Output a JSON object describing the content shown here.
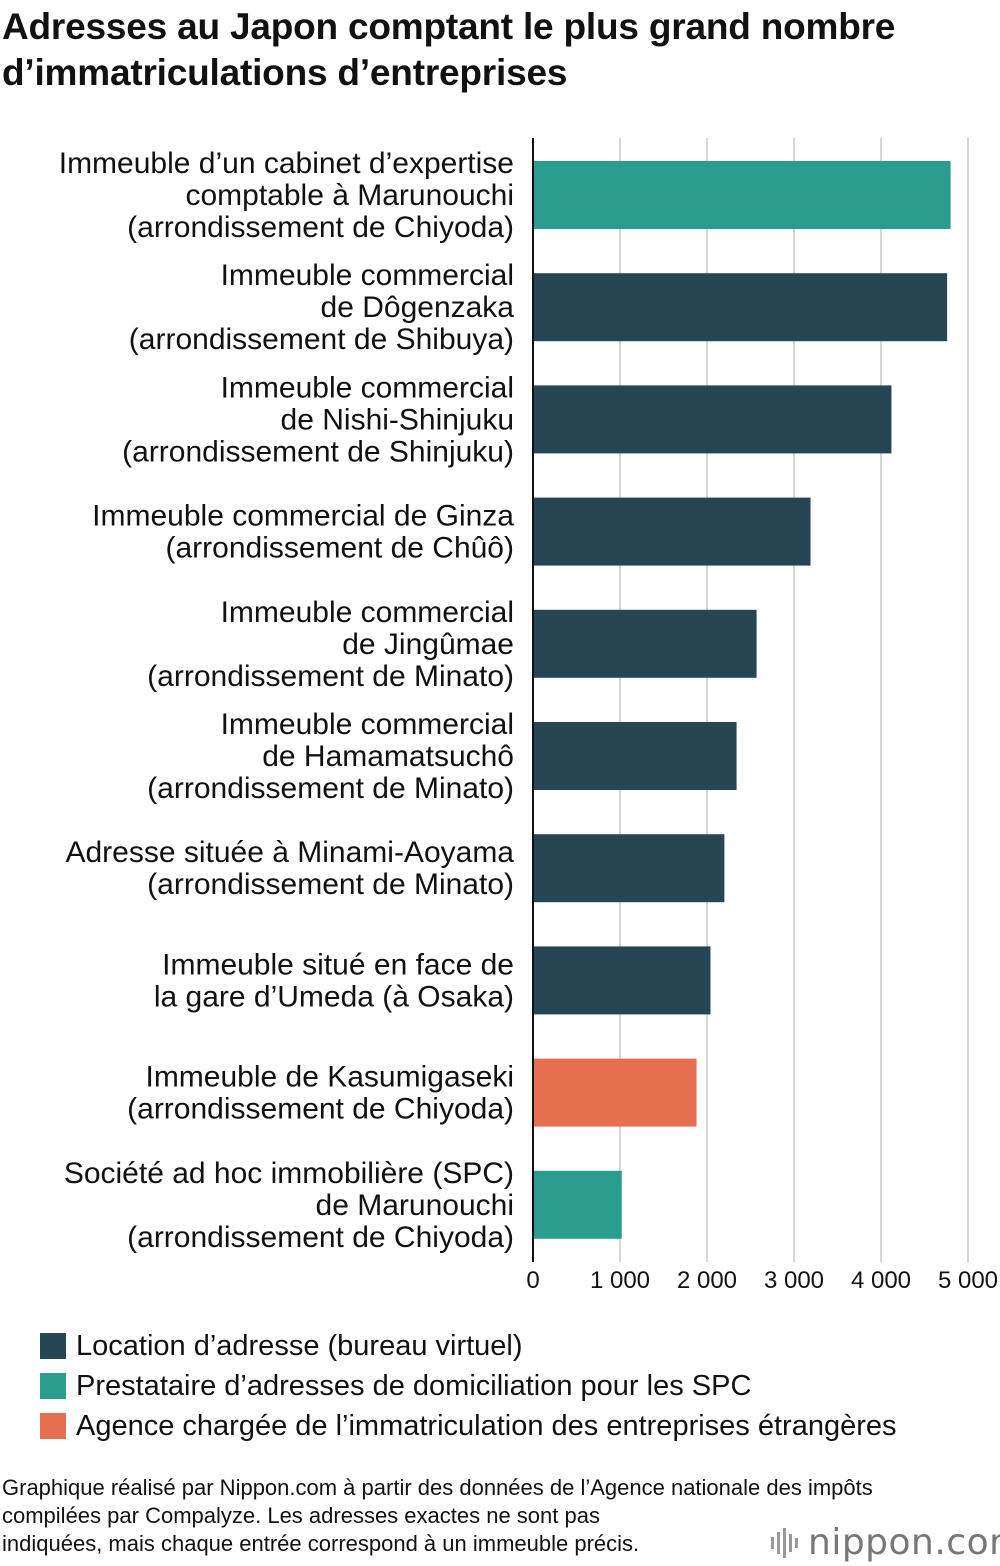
{
  "chart_data": {
    "type": "bar",
    "orientation": "horizontal",
    "title": "Adresses au Japon comptant le plus grand nombre d’immatriculations d’entreprises",
    "categories": [
      [
        "Immeuble d’un cabinet d’expertise",
        "comptable à Marunouchi",
        "(arrondissement de Chiyoda)"
      ],
      [
        "Immeuble commercial",
        "de Dôgenzaka",
        "(arrondissement de Shibuya)"
      ],
      [
        "Immeuble commercial",
        "de Nishi-Shinjuku",
        "(arrondissement de Shinjuku)"
      ],
      [
        "Immeuble commercial de Ginza",
        "(arrondissement de Chûô)"
      ],
      [
        "Immeuble commercial",
        "de Jingûmae",
        "(arrondissement de Minato)"
      ],
      [
        "Immeuble commercial",
        "de Hamamatsuchô",
        "(arrondissement de Minato)"
      ],
      [
        "Adresse située à Minami-Aoyama",
        "(arrondissement de Minato)"
      ],
      [
        "Immeuble situé en face de",
        "la gare d’Umeda (à Osaka)"
      ],
      [
        "Immeuble de Kasumigaseki",
        "(arrondissement de Chiyoda)"
      ],
      [
        "Société ad hoc immobilière (SPC)",
        "de Marunouchi",
        "(arrondissement de Chiyoda)"
      ]
    ],
    "values": [
      4800,
      4760,
      4120,
      3190,
      2570,
      2340,
      2200,
      2040,
      1880,
      1020
    ],
    "series_index": [
      1,
      0,
      0,
      0,
      0,
      0,
      0,
      0,
      2,
      1
    ],
    "series": [
      {
        "name": "Location d’adresse (bureau virtuel)",
        "color": "#264653"
      },
      {
        "name": "Prestataire d’adresses de domiciliation pour les SPC",
        "color": "#2a9d8f"
      },
      {
        "name": "Agence chargée de l’immatriculation des entreprises étrangères",
        "color": "#e76f51"
      }
    ],
    "xlim": [
      0,
      5000
    ],
    "xticks": [
      0,
      1000,
      2000,
      3000,
      4000,
      5000
    ],
    "xtick_labels": [
      "0",
      "1 000",
      "2 000",
      "3 000",
      "4 000",
      "5 000"
    ],
    "grid": true,
    "legend_position": "bottom"
  },
  "source_lines": [
    "Graphique réalisé par Nippon.com à partir des données de l’Agence nationale des impôts",
    "compilées par Compalyze. Les adresses exactes ne sont pas",
    "indiquées, mais chaque entrée correspond à un immeuble précis."
  ],
  "logo": {
    "text": "nippon.com",
    "icon": "soundwave-logo-icon"
  }
}
